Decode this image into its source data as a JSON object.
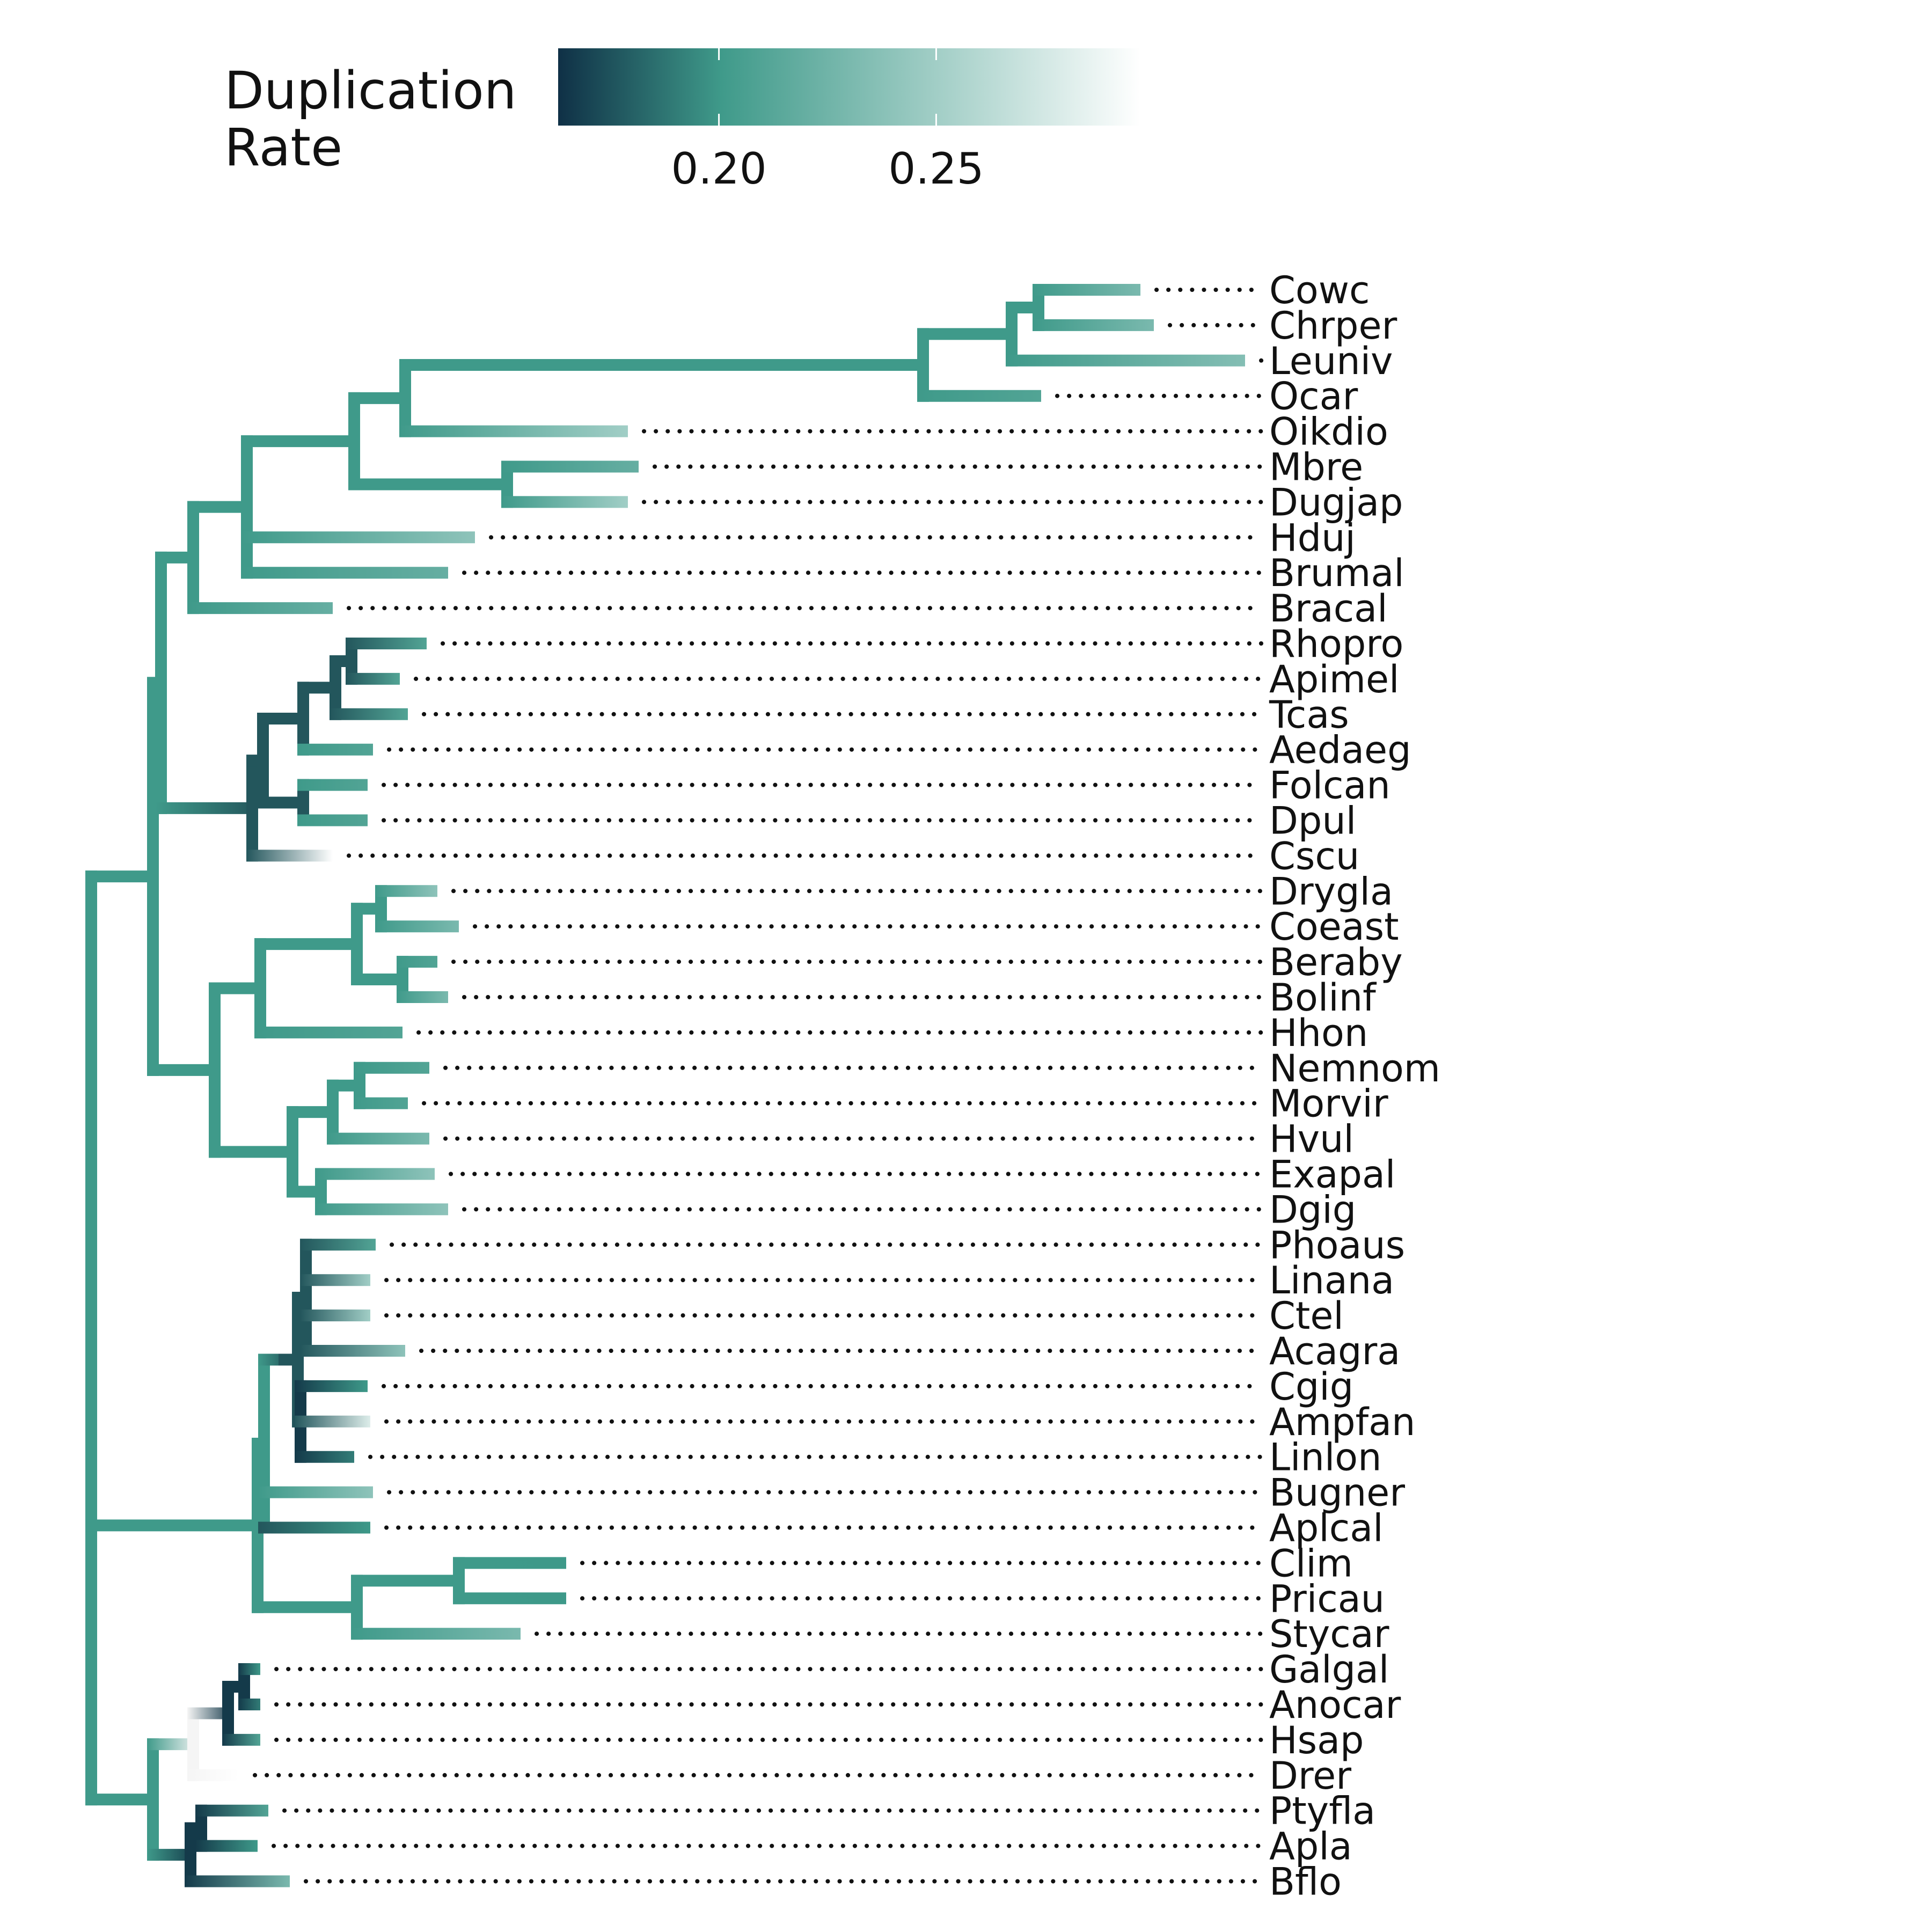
{
  "legend": {
    "title_line1": "Duplication",
    "title_line2": "Rate",
    "ticks": [
      "0.20",
      "0.25"
    ],
    "tick_values": [
      0.2,
      0.25
    ],
    "domain": [
      0.163,
      0.297
    ],
    "colors": [
      "#0f3046",
      "#3f9a8a",
      "#ffffff"
    ]
  },
  "tree": {
    "node_colors": {
      "teal": "#3f9a8a",
      "dark": "#23565c",
      "darker": "#143a4a",
      "light": "#f5f5f5"
    },
    "leaves": [
      {
        "name": "Cowc",
        "rate": 0.23
      },
      {
        "name": "Chrper",
        "rate": 0.23
      },
      {
        "name": "Leuniv",
        "rate": 0.235
      },
      {
        "name": "Ocar",
        "rate": 0.21
      },
      {
        "name": "Oikdio",
        "rate": 0.25
      },
      {
        "name": "Mbre",
        "rate": 0.22
      },
      {
        "name": "Dugjap",
        "rate": 0.25
      },
      {
        "name": "Hduj",
        "rate": 0.24
      },
      {
        "name": "Brumal",
        "rate": 0.22
      },
      {
        "name": "Bracal",
        "rate": 0.22
      },
      {
        "name": "Rhopro",
        "rate": 0.21
      },
      {
        "name": "Apimel",
        "rate": 0.21
      },
      {
        "name": "Tcas",
        "rate": 0.21
      },
      {
        "name": "Aedaeg",
        "rate": 0.21
      },
      {
        "name": "Folcan",
        "rate": 0.21
      },
      {
        "name": "Dpul",
        "rate": 0.21
      },
      {
        "name": "Cscu",
        "rate": 0.297
      },
      {
        "name": "Drygla",
        "rate": 0.24
      },
      {
        "name": "Coeast",
        "rate": 0.23
      },
      {
        "name": "Beraby",
        "rate": 0.21
      },
      {
        "name": "Bolinf",
        "rate": 0.23
      },
      {
        "name": "Hhon",
        "rate": 0.21
      },
      {
        "name": "Nemnom",
        "rate": 0.21
      },
      {
        "name": "Morvir",
        "rate": 0.21
      },
      {
        "name": "Hvul",
        "rate": 0.23
      },
      {
        "name": "Exapal",
        "rate": 0.24
      },
      {
        "name": "Dgig",
        "rate": 0.24
      },
      {
        "name": "Phoaus",
        "rate": 0.21
      },
      {
        "name": "Linana",
        "rate": 0.25
      },
      {
        "name": "Ctel",
        "rate": 0.25
      },
      {
        "name": "Acagra",
        "rate": 0.24
      },
      {
        "name": "Cgig",
        "rate": 0.2
      },
      {
        "name": "Ampfan",
        "rate": 0.28
      },
      {
        "name": "Linlon",
        "rate": 0.19
      },
      {
        "name": "Bugner",
        "rate": 0.24
      },
      {
        "name": "Aplcal",
        "rate": 0.2
      },
      {
        "name": "Clim",
        "rate": 0.2
      },
      {
        "name": "Pricau",
        "rate": 0.2
      },
      {
        "name": "Stycar",
        "rate": 0.23
      },
      {
        "name": "Galgal",
        "rate": 0.2
      },
      {
        "name": "Anocar",
        "rate": 0.19
      },
      {
        "name": "Hsap",
        "rate": 0.21
      },
      {
        "name": "Drer",
        "rate": 0.297
      },
      {
        "name": "Ptyfla",
        "rate": 0.21
      },
      {
        "name": "Apla",
        "rate": 0.2
      },
      {
        "name": "Bflo",
        "rate": 0.23
      }
    ]
  }
}
